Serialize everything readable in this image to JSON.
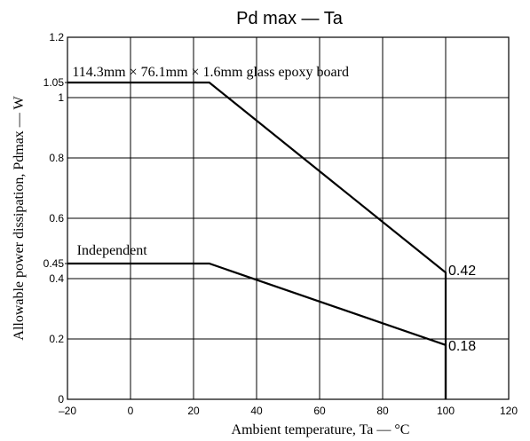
{
  "chart_data": {
    "type": "line",
    "title": "Pd max — Ta",
    "xlabel": "Ambient temperature, Ta — °C",
    "ylabel": "Allowable power dissipation, Pdmax — W",
    "xlim": [
      -20,
      120
    ],
    "ylim": [
      0,
      1.2
    ],
    "grid": true,
    "x_ticks": [
      -20,
      0,
      20,
      40,
      60,
      80,
      100,
      120
    ],
    "x_tick_labels": [
      "–20",
      "0",
      "20",
      "40",
      "60",
      "80",
      "100",
      "120"
    ],
    "y_ticks": [
      0,
      0.2,
      0.4,
      0.6,
      0.8,
      1,
      1.2
    ],
    "y_tick_labels": [
      "0",
      "0.2",
      "0.4",
      "0.6",
      "0.8",
      "1",
      "1.2"
    ],
    "y_extra_ticks": [
      1.05,
      0.45
    ],
    "y_extra_tick_labels": [
      "1.05",
      "0.45"
    ],
    "series": [
      {
        "name": "114.3mm × 76.1mm × 1.6mm glass epoxy board",
        "points": [
          [
            -20,
            1.05
          ],
          [
            25,
            1.05
          ],
          [
            100,
            0.42
          ],
          [
            100,
            0
          ]
        ],
        "end_label": "0.42",
        "end_value": [
          100,
          0.42
        ]
      },
      {
        "name": "Independent",
        "points": [
          [
            -20,
            0.45
          ],
          [
            25,
            0.45
          ],
          [
            100,
            0.18
          ],
          [
            100,
            0
          ]
        ],
        "end_label": "0.18",
        "end_value": [
          100,
          0.18
        ]
      }
    ]
  }
}
